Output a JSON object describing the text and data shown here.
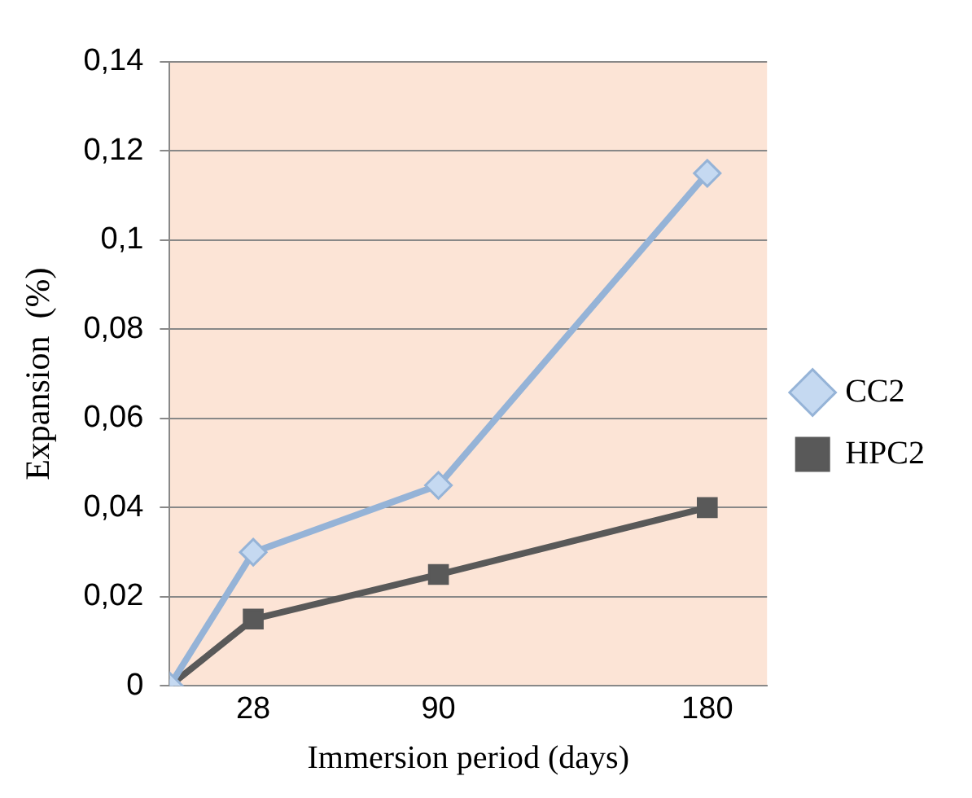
{
  "chart_data": {
    "type": "line",
    "xlabel": "Immersion period (days)",
    "ylabel": "Expansion  (%)",
    "x": [
      0,
      28,
      90,
      180
    ],
    "xlim": [
      0,
      200
    ],
    "xticks": [
      28,
      90,
      180
    ],
    "ylim": [
      0,
      0.14
    ],
    "yticks": [
      {
        "value": 0,
        "label": "0"
      },
      {
        "value": 0.02,
        "label": "0,02"
      },
      {
        "value": 0.04,
        "label": "0,04"
      },
      {
        "value": 0.06,
        "label": "0,06"
      },
      {
        "value": 0.08,
        "label": "0,08"
      },
      {
        "value": 0.1,
        "label": "0,1"
      },
      {
        "value": 0.12,
        "label": "0,12"
      },
      {
        "value": 0.14,
        "label": "0,14"
      }
    ],
    "series": [
      {
        "name": "CC2",
        "color": "#95b3d7",
        "marker": "diamond",
        "values": [
          0,
          0.03,
          0.045,
          0.115
        ]
      },
      {
        "name": "HPC2",
        "color": "#595959",
        "marker": "square",
        "values": [
          0,
          0.015,
          0.025,
          0.04
        ]
      }
    ],
    "grid": "y",
    "legend": "right",
    "line_style": "solid"
  }
}
